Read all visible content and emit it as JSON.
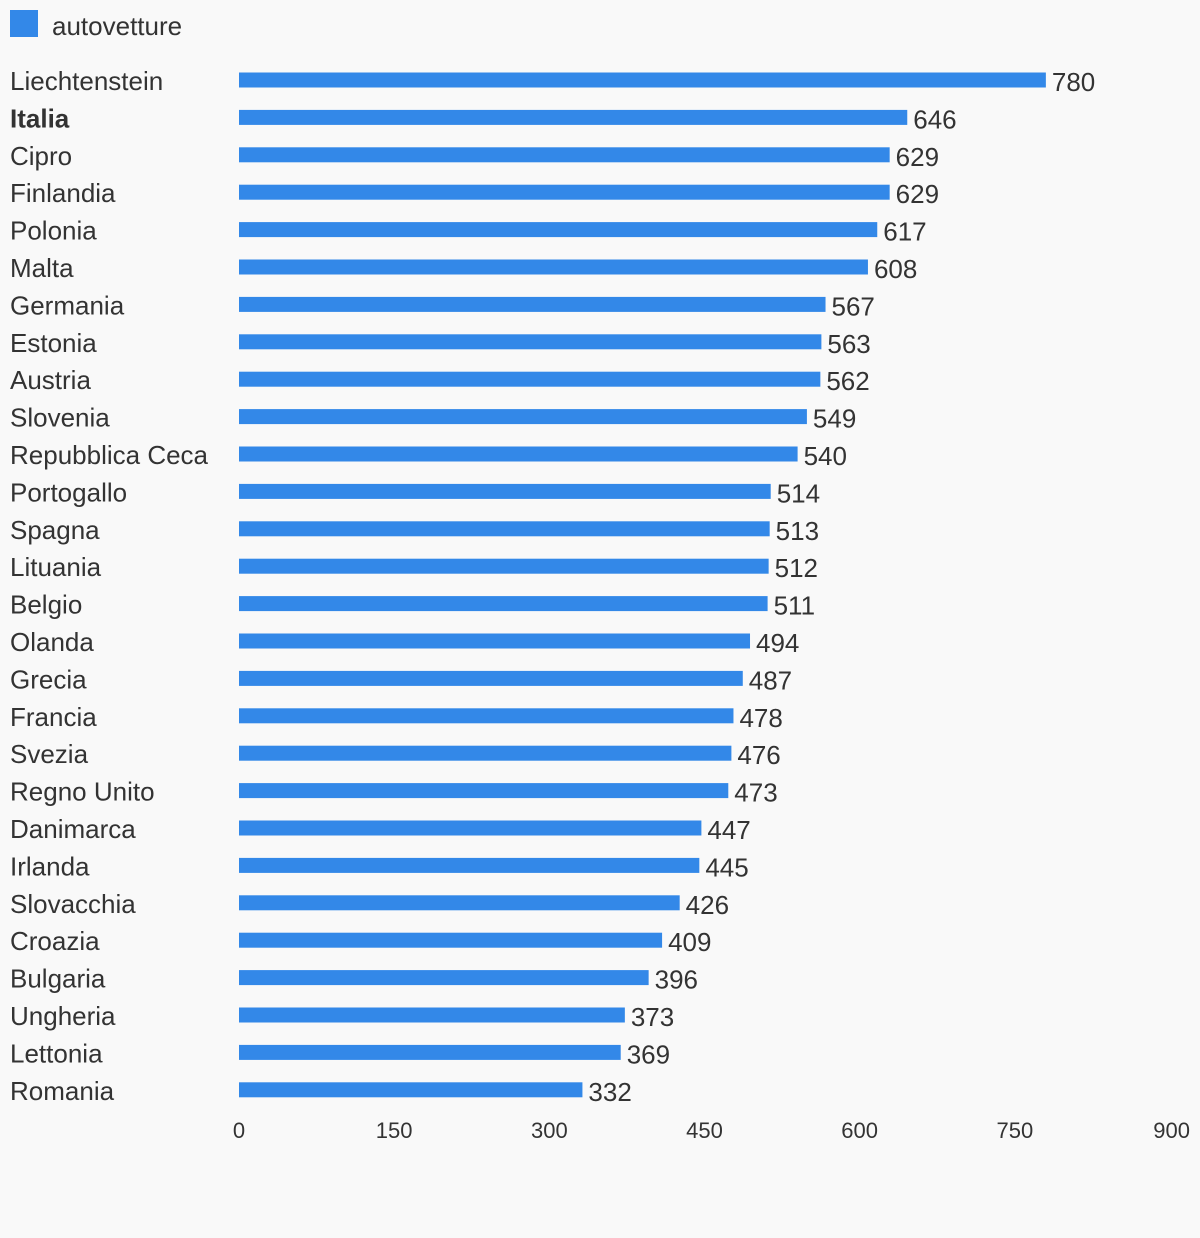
{
  "chart_data": {
    "type": "bar",
    "orientation": "horizontal",
    "legend": {
      "label": "autovetture",
      "color": "#3388e8",
      "position": "top-left"
    },
    "categories": [
      "Liechtenstein",
      "Italia",
      "Cipro",
      "Finlandia",
      "Polonia",
      "Malta",
      "Germania",
      "Estonia",
      "Austria",
      "Slovenia",
      "Repubblica Ceca",
      "Portogallo",
      "Spagna",
      "Lituania",
      "Belgio",
      "Olanda",
      "Grecia",
      "Francia",
      "Svezia",
      "Regno Unito",
      "Danimarca",
      "Irlanda",
      "Slovacchia",
      "Croazia",
      "Bulgaria",
      "Ungheria",
      "Lettonia",
      "Romania"
    ],
    "highlight_category": "Italia",
    "series": [
      {
        "name": "autovetture",
        "color": "#3388e8",
        "values": [
          780,
          646,
          629,
          629,
          617,
          608,
          567,
          563,
          562,
          549,
          540,
          514,
          513,
          512,
          511,
          494,
          487,
          478,
          476,
          473,
          447,
          445,
          426,
          409,
          396,
          373,
          369,
          332
        ]
      }
    ],
    "xlim": [
      0,
      900
    ],
    "xticks": [
      "0",
      "150",
      "300",
      "450",
      "600",
      "750",
      "900"
    ],
    "grid": false,
    "text_color": "#333333",
    "background": "#f9f9f9"
  }
}
